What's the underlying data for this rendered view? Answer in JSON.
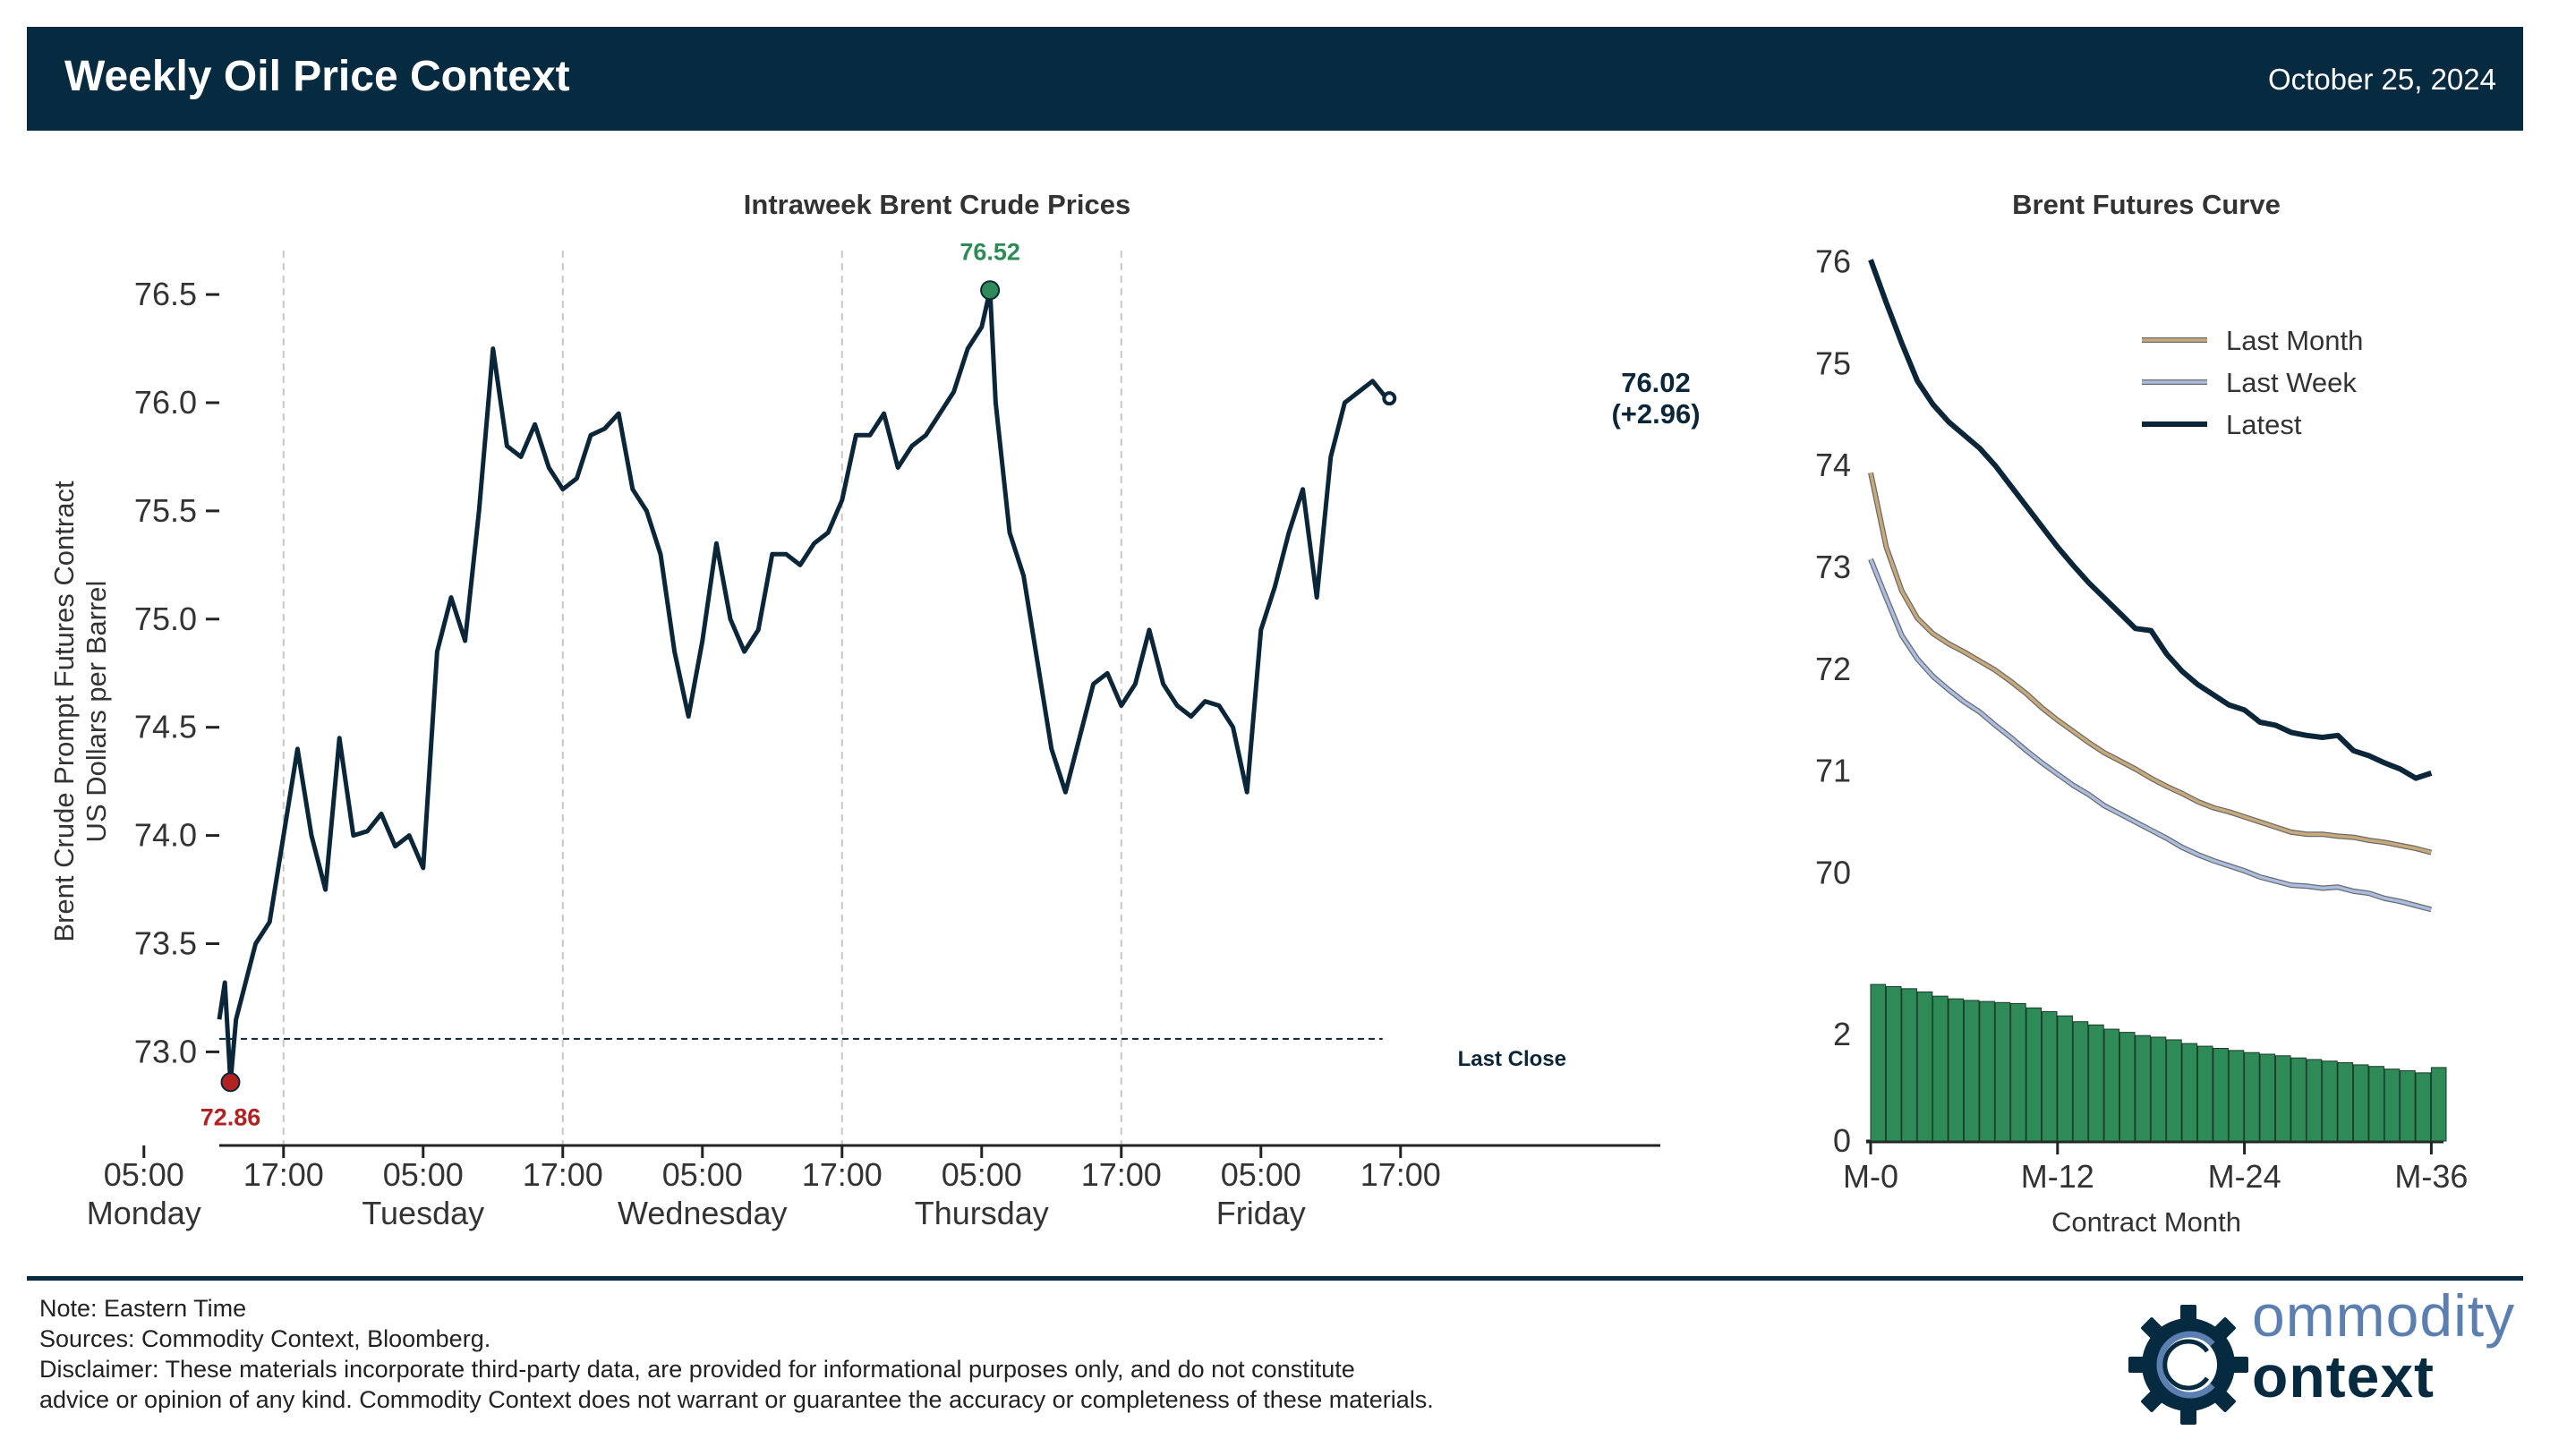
{
  "header": {
    "title": "Weekly Oil Price Context",
    "date": "October 25, 2024"
  },
  "colors": {
    "header_bg": "#062a40",
    "price_line": "#0b2639",
    "high_marker": "#2e8b57",
    "low_marker": "#b22222",
    "last_month": "#c8a97a",
    "last_week": "#a9bde0",
    "latest": "#0b2639",
    "bars": "#2e8b57"
  },
  "chart_data": [
    {
      "type": "line",
      "title": "Intraweek Brent Crude Prices",
      "ylabel_line1": "Brent Crude Prompt Futures Contract",
      "ylabel_line2": "US Dollars per Barrel",
      "ylim": [
        72.6,
        76.85
      ],
      "xlim": [
        0.77,
        5.93
      ],
      "yticks": [
        73.0,
        73.5,
        74.0,
        74.5,
        75.0,
        75.5,
        76.0,
        76.5
      ],
      "ytick_labels": [
        "73.0",
        "73.5",
        "74.0",
        "74.5",
        "75.0",
        "75.5",
        "76.0",
        "76.5"
      ],
      "x_unit": "days since Sunday 17:00 ET",
      "xticks": [
        {
          "x": 0.5,
          "label": "05:00",
          "day": "Monday"
        },
        {
          "x": 1.0,
          "label": "17:00",
          "day": ""
        },
        {
          "x": 1.5,
          "label": "05:00",
          "day": "Tuesday"
        },
        {
          "x": 2.0,
          "label": "17:00",
          "day": ""
        },
        {
          "x": 2.5,
          "label": "05:00",
          "day": "Wednesday"
        },
        {
          "x": 3.0,
          "label": "17:00",
          "day": ""
        },
        {
          "x": 3.5,
          "label": "05:00",
          "day": "Thursday"
        },
        {
          "x": 4.0,
          "label": "17:00",
          "day": ""
        },
        {
          "x": 4.5,
          "label": "05:00",
          "day": "Friday"
        },
        {
          "x": 5.0,
          "label": "17:00",
          "day": ""
        }
      ],
      "grid_x": [
        1.0,
        2.0,
        3.0,
        4.0
      ],
      "last_close": {
        "value": 73.06,
        "label": "Last Close"
      },
      "high": {
        "x": 3.53,
        "value": 76.52,
        "label": "76.52"
      },
      "low": {
        "x": 0.81,
        "value": 72.86,
        "label": "72.86"
      },
      "last": {
        "x": 4.96,
        "value": 76.02,
        "label_price": "76.02",
        "label_change": "(+2.96)"
      },
      "series": [
        {
          "x": [
            0.77,
            0.79,
            0.81,
            0.83,
            0.86,
            0.9,
            0.95,
            1.0,
            1.05,
            1.1,
            1.15,
            1.2,
            1.25,
            1.3,
            1.35,
            1.4,
            1.45,
            1.5,
            1.55,
            1.6,
            1.65,
            1.7,
            1.75,
            1.8,
            1.85,
            1.9,
            1.95,
            2.0,
            2.05,
            2.1,
            2.15,
            2.2,
            2.25,
            2.3,
            2.35,
            2.4,
            2.45,
            2.5,
            2.55,
            2.6,
            2.65,
            2.7,
            2.75,
            2.8,
            2.85,
            2.9,
            2.95,
            3.0,
            3.05,
            3.1,
            3.15,
            3.2,
            3.25,
            3.3,
            3.35,
            3.4,
            3.45,
            3.5,
            3.53,
            3.55,
            3.6,
            3.65,
            3.7,
            3.75,
            3.8,
            3.85,
            3.9,
            3.95,
            4.0,
            4.05,
            4.1,
            4.15,
            4.2,
            4.25,
            4.3,
            4.35,
            4.4,
            4.45,
            4.5,
            4.55,
            4.6,
            4.65,
            4.7,
            4.75,
            4.8,
            4.85,
            4.9,
            4.95,
            4.96
          ],
          "values": [
            73.15,
            73.32,
            72.86,
            73.15,
            73.3,
            73.5,
            73.6,
            74.0,
            74.4,
            74.0,
            73.75,
            74.45,
            74.0,
            74.02,
            74.1,
            73.95,
            74.0,
            73.85,
            74.85,
            75.1,
            74.9,
            75.5,
            76.25,
            75.8,
            75.75,
            75.9,
            75.7,
            75.6,
            75.65,
            75.85,
            75.88,
            75.95,
            75.6,
            75.5,
            75.3,
            74.85,
            74.55,
            74.9,
            75.35,
            75.0,
            74.85,
            74.95,
            75.3,
            75.3,
            75.25,
            75.35,
            75.4,
            75.55,
            75.85,
            75.85,
            75.95,
            75.7,
            75.8,
            75.85,
            75.95,
            76.05,
            76.25,
            76.35,
            76.52,
            76.0,
            75.4,
            75.2,
            74.8,
            74.4,
            74.2,
            74.45,
            74.7,
            74.75,
            74.6,
            74.7,
            74.95,
            74.7,
            74.6,
            74.55,
            74.62,
            74.6,
            74.5,
            74.2,
            74.95,
            75.15,
            75.4,
            75.6,
            75.1,
            75.75,
            76.0,
            76.05,
            76.1,
            76.02,
            76.02
          ]
        }
      ]
    },
    {
      "type": "line",
      "title": "Brent Futures Curve",
      "xlabel": "Contract Month",
      "ylim": [
        69.0,
        76.1
      ],
      "yticks": [
        70,
        71,
        72,
        73,
        74,
        75,
        76
      ],
      "xticks": [
        {
          "x": 0,
          "label": "M-0"
        },
        {
          "x": 12,
          "label": "M-12"
        },
        {
          "x": 24,
          "label": "M-24"
        },
        {
          "x": 36,
          "label": "M-36"
        }
      ],
      "legend_position": "upper-right",
      "series": [
        {
          "name": "Last Month",
          "x": [
            0,
            1,
            2,
            3,
            4,
            5,
            6,
            7,
            8,
            9,
            10,
            11,
            12,
            13,
            14,
            15,
            16,
            17,
            18,
            19,
            20,
            21,
            22,
            23,
            24,
            25,
            26,
            27,
            28,
            29,
            30,
            31,
            32,
            33,
            34,
            35,
            36
          ],
          "values": [
            73.93,
            73.2,
            72.77,
            72.5,
            72.35,
            72.25,
            72.17,
            72.08,
            71.99,
            71.88,
            71.76,
            71.62,
            71.5,
            71.39,
            71.28,
            71.18,
            71.1,
            71.02,
            70.93,
            70.85,
            70.78,
            70.7,
            70.64,
            70.6,
            70.55,
            70.5,
            70.45,
            70.4,
            70.38,
            70.38,
            70.36,
            70.35,
            70.32,
            70.3,
            70.27,
            70.24,
            70.2
          ]
        },
        {
          "name": "Last Week",
          "x": [
            0,
            1,
            2,
            3,
            4,
            5,
            6,
            7,
            8,
            9,
            10,
            11,
            12,
            13,
            14,
            15,
            16,
            17,
            18,
            19,
            20,
            21,
            22,
            23,
            24,
            25,
            26,
            27,
            28,
            29,
            30,
            31,
            32,
            33,
            34,
            35,
            36
          ],
          "values": [
            73.08,
            72.7,
            72.33,
            72.1,
            71.93,
            71.8,
            71.68,
            71.58,
            71.45,
            71.33,
            71.2,
            71.08,
            70.97,
            70.86,
            70.77,
            70.66,
            70.58,
            70.5,
            70.42,
            70.34,
            70.25,
            70.18,
            70.12,
            70.07,
            70.02,
            69.96,
            69.92,
            69.88,
            69.87,
            69.85,
            69.86,
            69.82,
            69.8,
            69.75,
            69.72,
            69.68,
            69.64
          ]
        },
        {
          "name": "Latest",
          "x": [
            0,
            1,
            2,
            3,
            4,
            5,
            6,
            7,
            8,
            9,
            10,
            11,
            12,
            13,
            14,
            15,
            16,
            17,
            18,
            19,
            20,
            21,
            22,
            23,
            24,
            25,
            26,
            27,
            28,
            29,
            30,
            31,
            32,
            33,
            34,
            35,
            36
          ],
          "values": [
            76.02,
            75.6,
            75.2,
            74.83,
            74.6,
            74.43,
            74.3,
            74.17,
            74.0,
            73.8,
            73.6,
            73.4,
            73.2,
            73.02,
            72.85,
            72.7,
            72.55,
            72.4,
            72.38,
            72.15,
            71.98,
            71.85,
            71.75,
            71.65,
            71.6,
            71.48,
            71.45,
            71.38,
            71.35,
            71.33,
            71.35,
            71.2,
            71.15,
            71.08,
            71.02,
            70.93,
            70.98
          ]
        }
      ]
    },
    {
      "type": "bar",
      "x": [
        0,
        1,
        2,
        3,
        4,
        5,
        6,
        7,
        8,
        9,
        10,
        11,
        12,
        13,
        14,
        15,
        16,
        17,
        18,
        19,
        20,
        21,
        22,
        23,
        24,
        25,
        26,
        27,
        28,
        29,
        30,
        31,
        32,
        33,
        34,
        35,
        36
      ],
      "values": [
        2.94,
        2.9,
        2.86,
        2.8,
        2.72,
        2.67,
        2.64,
        2.62,
        2.6,
        2.58,
        2.5,
        2.43,
        2.35,
        2.24,
        2.18,
        2.1,
        2.04,
        1.98,
        1.95,
        1.9,
        1.83,
        1.78,
        1.74,
        1.7,
        1.66,
        1.63,
        1.6,
        1.56,
        1.53,
        1.5,
        1.47,
        1.43,
        1.4,
        1.35,
        1.32,
        1.28,
        1.38
      ],
      "ylim": [
        0,
        3.2
      ],
      "yticks": [
        0,
        2
      ],
      "ytick_labels": [
        "0",
        "2"
      ]
    }
  ],
  "footer": {
    "note": "Note: Eastern Time",
    "sources": "Sources: Commodity Context, Bloomberg.",
    "disclaimer1": "Disclaimer: These materials incorporate third-party data, are provided for informational purposes only, and do not constitute",
    "disclaimer2": "advice or opinion of any kind. Commodity Context does not warrant or guarantee the accuracy or completeness of these materials.",
    "logo_line1": "ommodity",
    "logo_line2": "ontext"
  }
}
